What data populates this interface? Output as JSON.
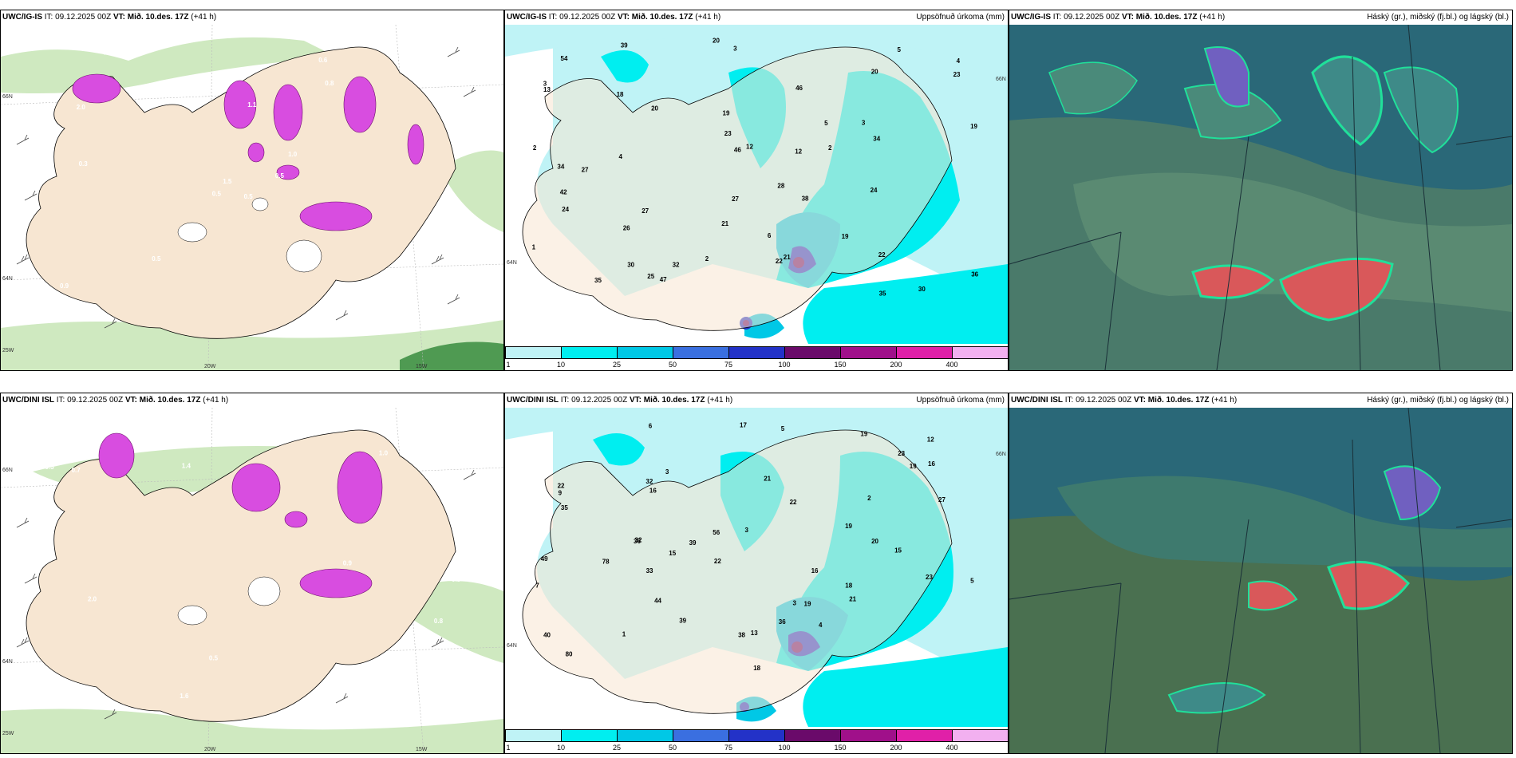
{
  "colors": {
    "land": "#f7e6d2",
    "sea_light": "#bff3f6",
    "cyan1": "#00eef0",
    "cyan2": "#00c8e6",
    "blue1": "#3a6fe0",
    "blue2": "#2332c8",
    "purple1": "#6a0a6a",
    "purple2": "#a0108a",
    "magenta": "#e020a8",
    "pink": "#f2b0f0",
    "snow_pink": "#d84de0",
    "green_light": "#cfe9c0",
    "green_mid": "#9fd58a",
    "green_dark": "#4f9a52",
    "cloud_bg": "#2a6878",
    "cloud_mid": "#4a8a7a",
    "cloud_edge": "#20e09a",
    "cloud_red": "#d9585a",
    "cloud_purple": "#7060c0"
  },
  "panels": [
    {
      "id": "igis-wind",
      "title_model": "UWC/IG-IS",
      "title_it": "IT: 09.12.2025 00Z",
      "title_vt_label": "VT:",
      "title_vt": "Mið. 10.des. 17Z",
      "title_lead": "(+41 h)",
      "right_title": "",
      "axis": {
        "lat1": "66N",
        "lat2": "64N",
        "lat3": "25W",
        "lon1": "20W",
        "lon2": "15W"
      },
      "labels": [
        "0.5",
        "2.0",
        "1.5",
        "0.9",
        "1.0",
        "0.5",
        "0.6",
        "1.1",
        "0.8",
        "0.5",
        "1.4",
        "0.9",
        "0.3",
        "0.5",
        "0.5"
      ]
    },
    {
      "id": "igis-precip",
      "title_model": "UWC/IG-IS",
      "title_it": "IT: 09.12.2025 00Z",
      "title_vt_label": "VT:",
      "title_vt": "Mið. 10.des. 17Z",
      "title_lead": "(+41 h)",
      "right_title": "Uppsöfnuð úrkoma (mm)",
      "axis": {
        "lat1": "66N",
        "lat2": "64N"
      },
      "labels": [
        "2",
        "3",
        "3",
        "4",
        "3",
        "30",
        "27",
        "46",
        "19",
        "5",
        "12",
        "24",
        "20",
        "13",
        "18",
        "26",
        "21",
        "34",
        "28",
        "21",
        "19",
        "22",
        "23",
        "23",
        "30",
        "46",
        "38",
        "39",
        "47",
        "22",
        "42",
        "35",
        "12",
        "35",
        "25",
        "24",
        "34",
        "54",
        "32",
        "20",
        "6",
        "2",
        "36",
        "19",
        "27",
        "27",
        "20",
        "1",
        "2",
        "4",
        "5"
      ]
    },
    {
      "id": "igis-cloud",
      "title_model": "UWC/IG-IS",
      "title_it": "IT: 09.12.2025 00Z",
      "title_vt_label": "VT:",
      "title_vt": "Mið. 10.des. 17Z",
      "title_lead": "(+41 h)",
      "right_title": "Háský (gr.), miðský (fj.bl.) og lágský (bl.)",
      "labels": []
    },
    {
      "id": "dini-wind",
      "title_model": "UWC/DINI ISL",
      "title_it": "IT: 09.12.2025 00Z",
      "title_vt_label": "VT:",
      "title_vt": "Mið. 10.des. 17Z",
      "title_lead": "(+41 h)",
      "right_title": "",
      "axis": {
        "lat1": "66N",
        "lat2": "64N",
        "lat3": "25W",
        "lon1": "20W",
        "lon2": "15W"
      },
      "labels": [
        "0.5",
        "2.0",
        "1.6",
        "0.9",
        "0.8",
        "1.5",
        "0.6",
        "1.0",
        "0.8",
        "1.4",
        "0.7",
        "0.5"
      ]
    },
    {
      "id": "dini-precip",
      "title_model": "UWC/DINI ISL",
      "title_it": "IT: 09.12.2025 00Z",
      "title_vt_label": "VT:",
      "title_vt": "Mið. 10.des. 17Z",
      "title_lead": "(+41 h)",
      "right_title": "Uppsöfnuð úrkoma (mm)",
      "axis": {
        "lat1": "66N",
        "lat2": "64N"
      },
      "labels": [
        "5",
        "3",
        "4",
        "3",
        "39",
        "16",
        "13",
        "12",
        "21",
        "19",
        "22",
        "32",
        "44",
        "32",
        "21",
        "23",
        "20",
        "27",
        "22",
        "33",
        "19",
        "23",
        "80",
        "39",
        "35",
        "36",
        "40",
        "38",
        "49",
        "78",
        "56",
        "15",
        "22",
        "36",
        "6",
        "9",
        "16",
        "19",
        "18",
        "19",
        "17",
        "18",
        "15",
        "16",
        "7",
        "5",
        "3",
        "2",
        "1"
      ]
    },
    {
      "id": "dini-cloud",
      "title_model": "UWC/DINI ISL",
      "title_it": "IT: 09.12.2025 00Z",
      "title_vt_label": "VT:",
      "title_vt": "Mið. 10.des. 17Z",
      "title_lead": "(+41 h)",
      "right_title": "Háský (gr.), miðský (fj.bl.) og lágský (bl.)",
      "labels": []
    }
  ],
  "colorbar": {
    "ticks": [
      "1",
      "10",
      "25",
      "50",
      "75",
      "100",
      "150",
      "200",
      "400"
    ],
    "colors": [
      "#bff3f6",
      "#00eef0",
      "#00c8e6",
      "#3a6fe0",
      "#2332c8",
      "#6a0a6a",
      "#a0108a",
      "#e020a8",
      "#f2b0f0"
    ]
  }
}
